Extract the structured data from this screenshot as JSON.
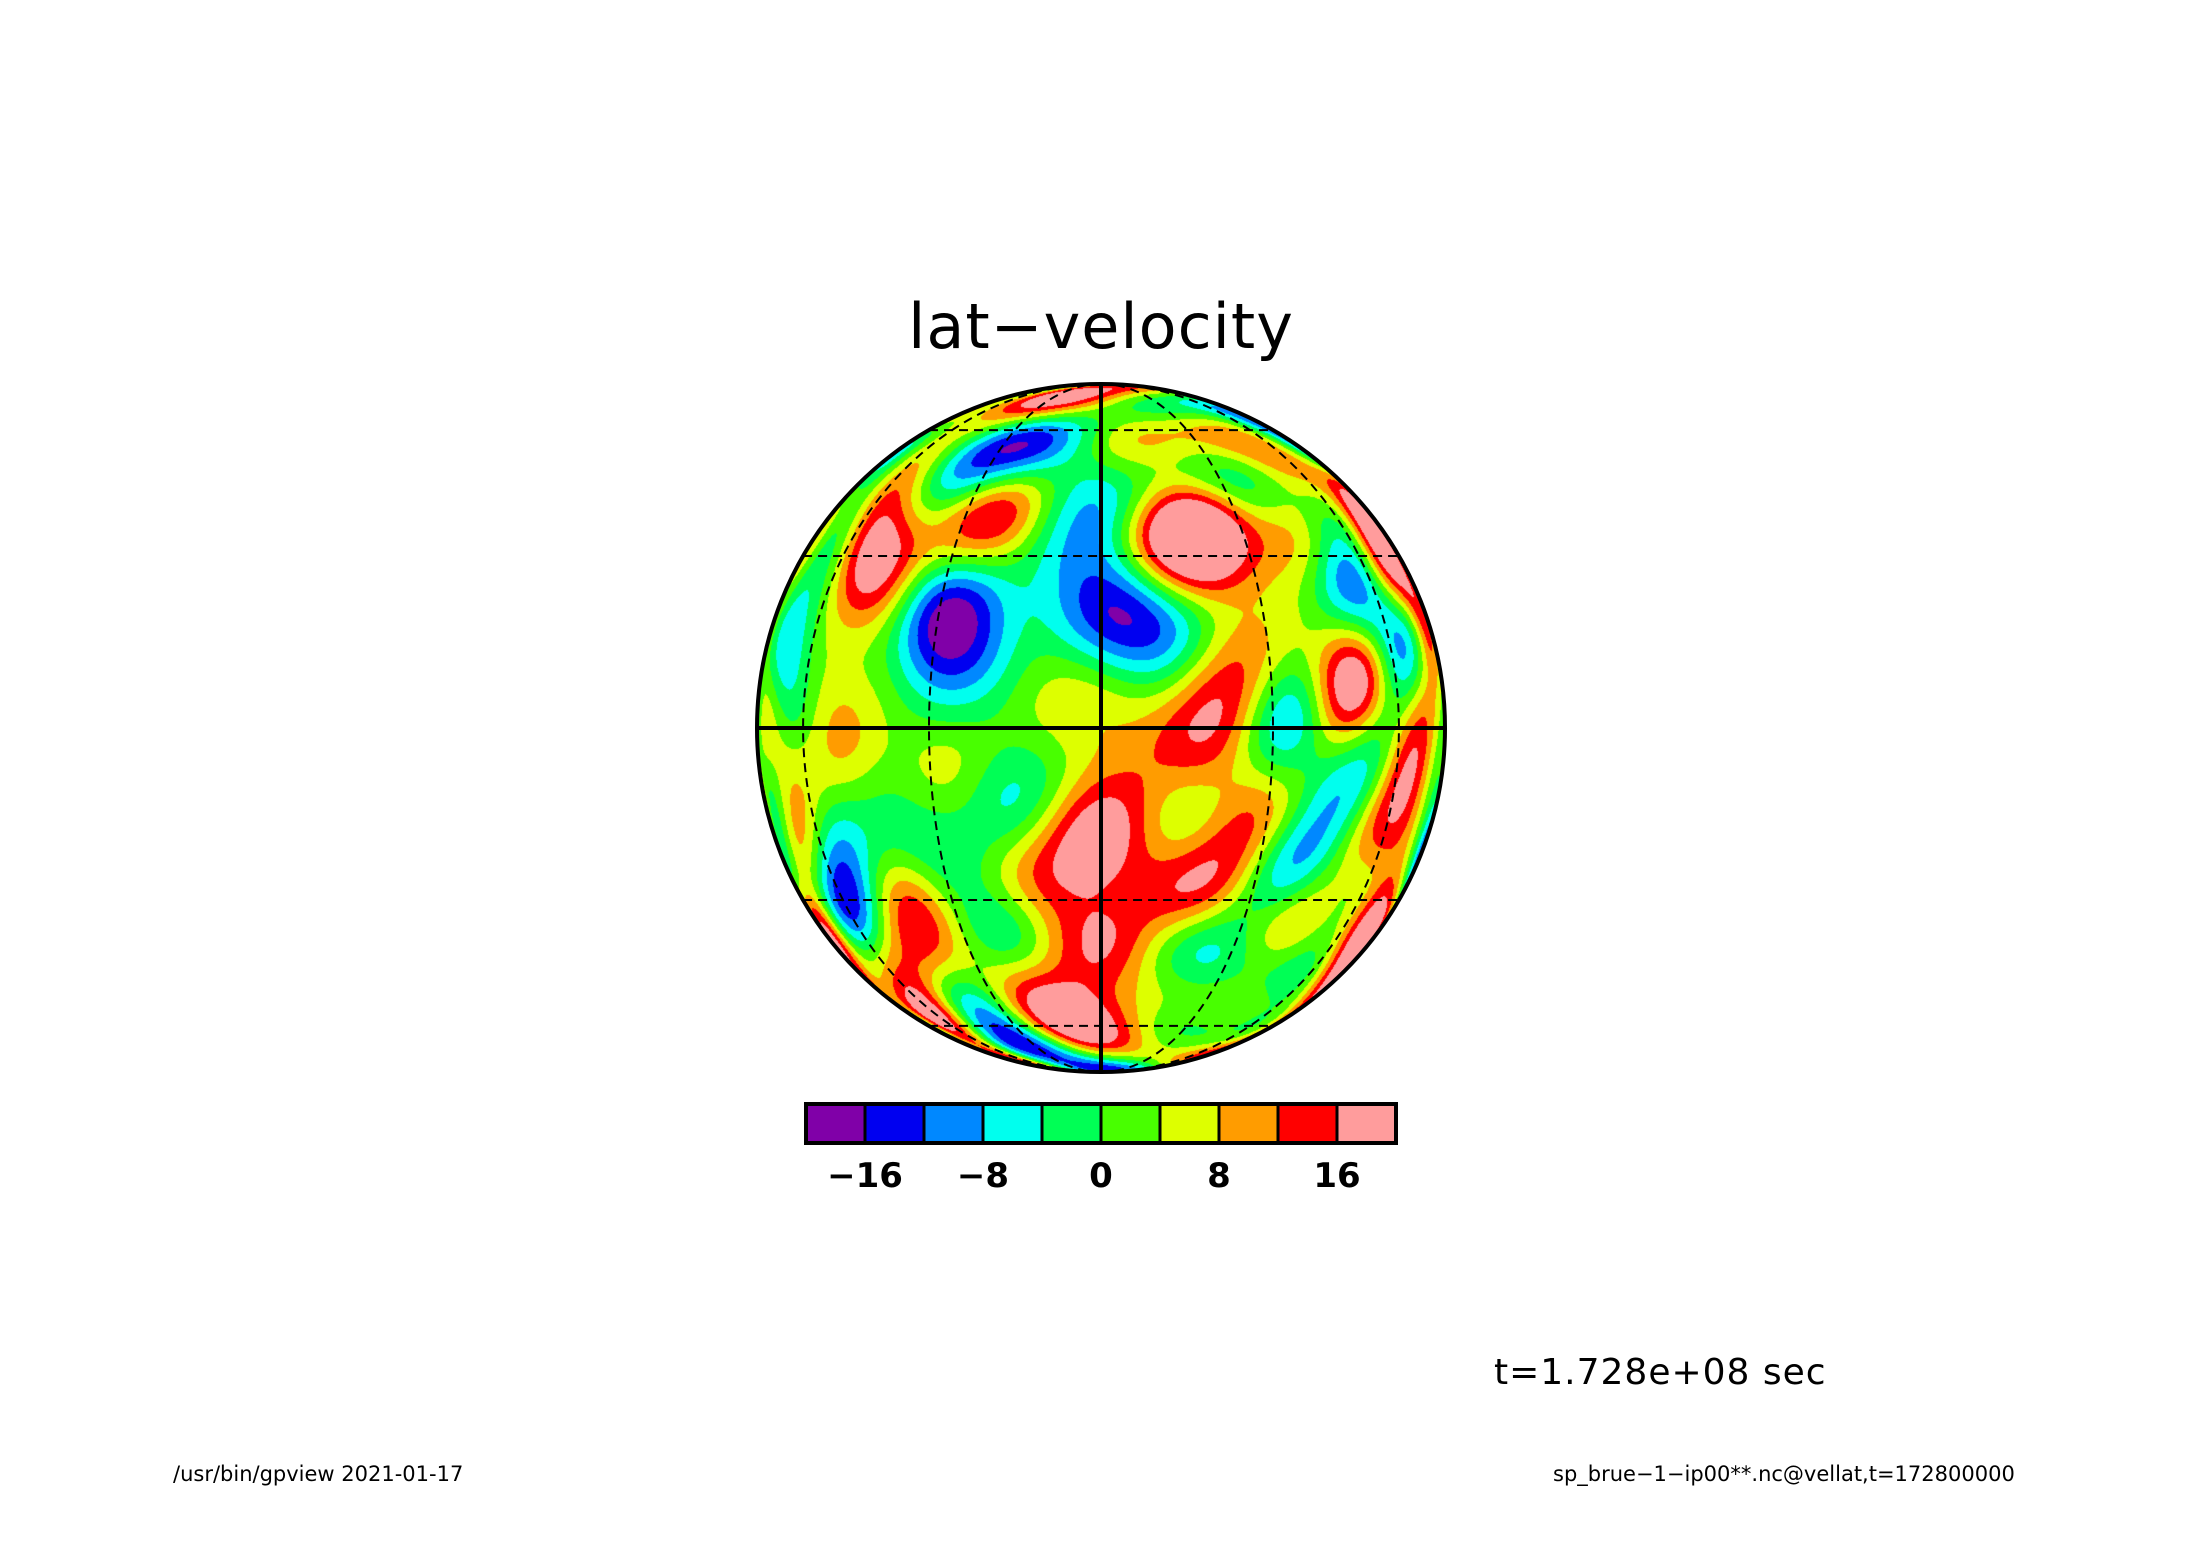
{
  "title": "lat−velocity",
  "time_label": "t=1.728e+08 sec",
  "footer": {
    "left": "/usr/bin/gpview  2021-01-17",
    "right": "sp_brue−1−ip00**.nc@vellat,t=172800000"
  },
  "chart_data": {
    "type": "heatmap",
    "projection": "orthographic",
    "title": "lat−velocity",
    "graticule": {
      "latitudes": [
        -60,
        -30,
        0,
        30,
        60
      ],
      "longitudes_offset": [
        -90,
        -60,
        -30,
        0,
        30,
        60,
        90
      ]
    },
    "colorbar": {
      "levels": [
        -16,
        -12,
        -8,
        -4,
        0,
        4,
        8,
        12,
        16
      ],
      "colors": [
        "#8000a8",
        "#0000f0",
        "#0088ff",
        "#00ffee",
        "#00ff55",
        "#48ff00",
        "#ddff00",
        "#ff9c00",
        "#ff0000",
        "#ff9c9c"
      ],
      "tick_labels": [
        "−16",
        "−8",
        "0",
        "8",
        "16"
      ],
      "tick_values": [
        -16,
        -8,
        0,
        8,
        16
      ]
    }
  }
}
